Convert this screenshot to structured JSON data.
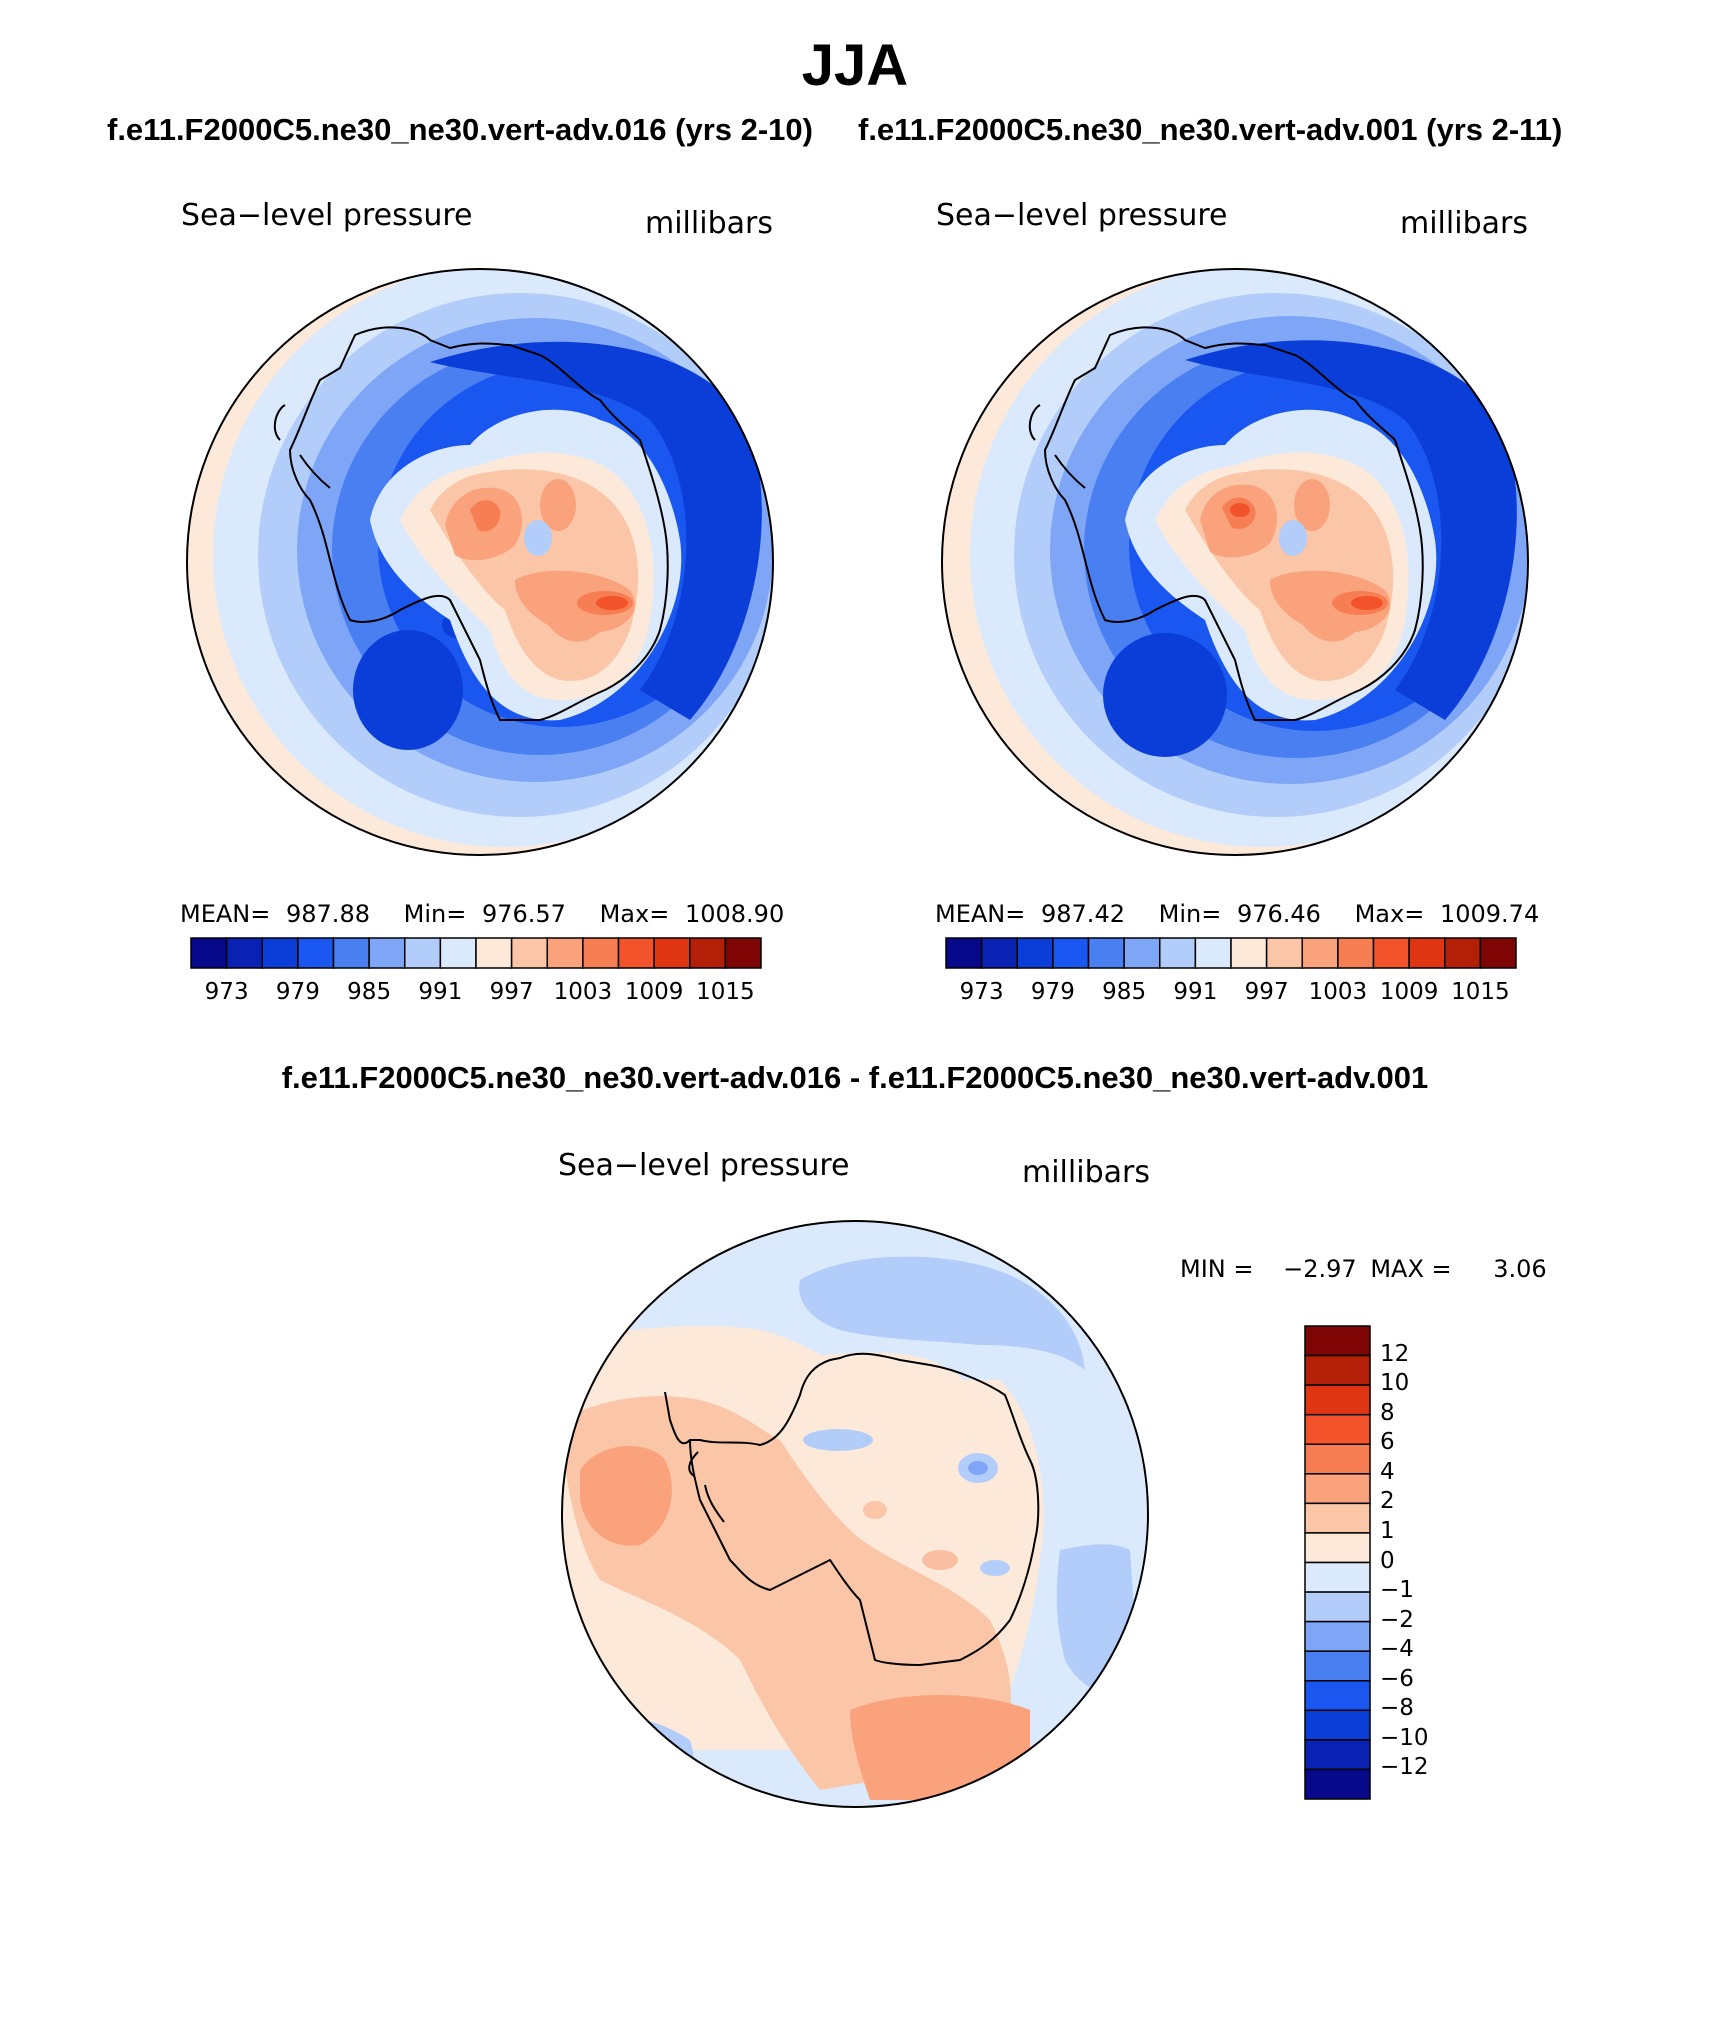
{
  "title": "JJA",
  "top_panels": [
    {
      "case_title": "f.e11.F2000C5.ne30_ne30.vert-adv.016 (yrs 2-10)",
      "variable": "Sea−level pressure",
      "units": "millibars",
      "stats": {
        "mean_label": "MEAN=",
        "mean": "987.88",
        "min_label": "Min=",
        "min": "976.57",
        "max_label": "Max=",
        "max": "1008.90"
      }
    },
    {
      "case_title": "f.e11.F2000C5.ne30_ne30.vert-adv.001 (yrs 2-11)",
      "variable": "Sea−level pressure",
      "units": "millibars",
      "stats": {
        "mean_label": "MEAN=",
        "mean": "987.42",
        "min_label": "Min=",
        "min": "976.46",
        "max_label": "Max=",
        "max": "1009.74"
      }
    }
  ],
  "top_colorbar": {
    "colors": [
      "#08088a",
      "#0a22b4",
      "#0b3ed9",
      "#1a56f0",
      "#4a7ff2",
      "#7fa6f6",
      "#b3cdfa",
      "#dbe9fc",
      "#fde9da",
      "#fbc6a7",
      "#f9a27c",
      "#f77e52",
      "#f2532a",
      "#df3512",
      "#b41f08",
      "#7f0505"
    ],
    "ticks": [
      "973",
      "979",
      "985",
      "991",
      "997",
      "1003",
      "1009",
      "1015"
    ]
  },
  "diff_panel": {
    "title": "f.e11.F2000C5.ne30_ne30.vert-adv.016 - f.e11.F2000C5.ne30_ne30.vert-adv.001",
    "variable": "Sea−level pressure",
    "units": "millibars",
    "min_label": "MIN =",
    "min": "−2.97",
    "max_label": "MAX =",
    "max": "3.06"
  },
  "diff_colorbar": {
    "colors": [
      "#7f0505",
      "#b41f08",
      "#df3512",
      "#f2532a",
      "#f77e52",
      "#f9a27c",
      "#fbc6a7",
      "#fde9da",
      "#dbe9fc",
      "#b3cdfa",
      "#7fa6f6",
      "#4a7ff2",
      "#1a56f0",
      "#0b3ed9",
      "#0a22b4",
      "#08088a"
    ],
    "ticks": [
      "12",
      "10",
      "8",
      "6",
      "4",
      "2",
      "1",
      "0",
      "−1",
      "−2",
      "−4",
      "−6",
      "−8",
      "−10",
      "−12"
    ]
  }
}
